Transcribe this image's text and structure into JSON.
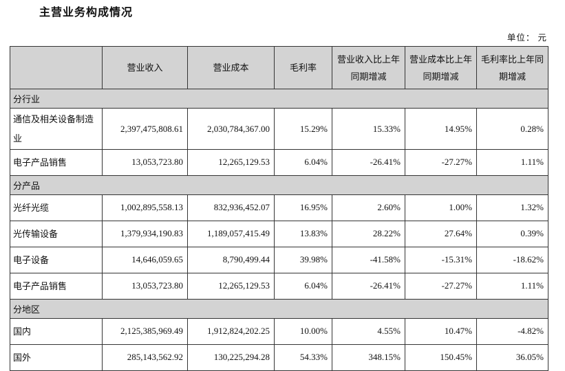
{
  "page": {
    "title": "主营业务构成情况",
    "unit_note": "单位： 元"
  },
  "colors": {
    "header_bg": "#d3d3d3",
    "border": "#333333",
    "text": "#111111"
  },
  "table": {
    "columns": [
      "",
      "营业收入",
      "营业成本",
      "毛利率",
      "营业收入比上年同期增减",
      "营业成本比上年同期增减",
      "毛利率比上年同期增减"
    ],
    "sections": [
      {
        "label": "分行业",
        "rows": [
          {
            "label": "通信及相关设备制造业",
            "values": [
              "2,397,475,808.61",
              "2,030,784,367.00",
              "15.29%",
              "15.33%",
              "14.95%",
              "0.28%"
            ]
          },
          {
            "label": "电子产品销售",
            "values": [
              "13,053,723.80",
              "12,265,129.53",
              "6.04%",
              "-26.41%",
              "-27.27%",
              "1.11%"
            ]
          }
        ]
      },
      {
        "label": "分产品",
        "rows": [
          {
            "label": "光纤光缆",
            "values": [
              "1,002,895,558.13",
              "832,936,452.07",
              "16.95%",
              "2.60%",
              "1.00%",
              "1.32%"
            ]
          },
          {
            "label": "光传输设备",
            "values": [
              "1,379,934,190.83",
              "1,189,057,415.49",
              "13.83%",
              "28.22%",
              "27.64%",
              "0.39%"
            ]
          },
          {
            "label": "电子设备",
            "values": [
              "14,646,059.65",
              "8,790,499.44",
              "39.98%",
              "-41.58%",
              "-15.31%",
              "-18.62%"
            ]
          },
          {
            "label": "电子产品销售",
            "values": [
              "13,053,723.80",
              "12,265,129.53",
              "6.04%",
              "-26.41%",
              "-27.27%",
              "1.11%"
            ]
          }
        ]
      },
      {
        "label": "分地区",
        "rows": [
          {
            "label": "国内",
            "values": [
              "2,125,385,969.49",
              "1,912,824,202.25",
              "10.00%",
              "4.55%",
              "10.47%",
              "-4.82%"
            ]
          },
          {
            "label": "国外",
            "values": [
              "285,143,562.92",
              "130,225,294.28",
              "54.33%",
              "348.15%",
              "150.45%",
              "36.05%"
            ]
          }
        ]
      }
    ]
  }
}
